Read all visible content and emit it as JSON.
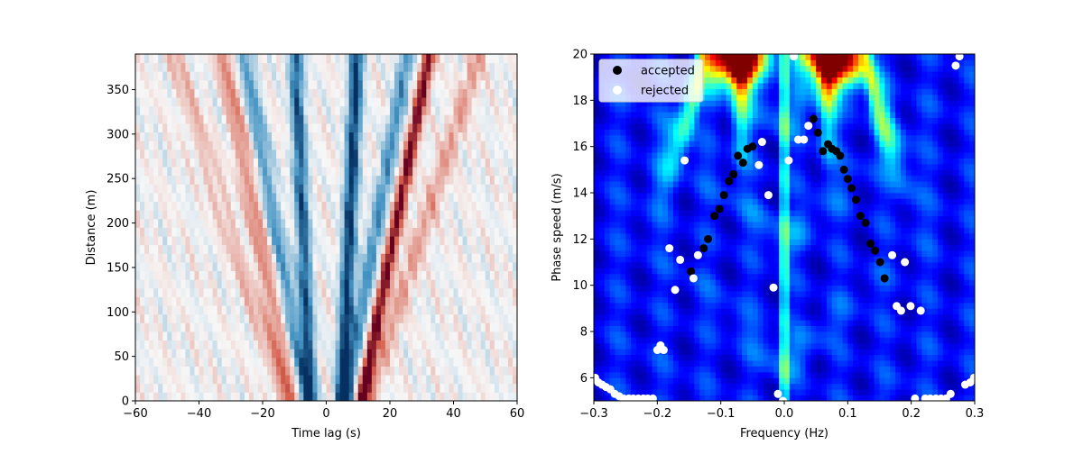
{
  "chart_data": [
    {
      "type": "heatmap",
      "title": "",
      "xlabel": "Time lag (s)",
      "ylabel": "Distance (m)",
      "xlim": [
        -60,
        60
      ],
      "ylim": [
        0,
        390
      ],
      "xticks": [
        -60,
        -40,
        -20,
        0,
        20,
        40,
        60
      ],
      "yticks": [
        0,
        50,
        100,
        150,
        200,
        250,
        300,
        350
      ],
      "colormap": "RdBu",
      "bands": [
        {
          "slope_s_per_m": 0.012,
          "offset_s": 5,
          "sign": "positive",
          "polarity": -1,
          "strength": 1.0,
          "width_s": 2.2
        },
        {
          "slope_s_per_m": 0.012,
          "offset_s": 5,
          "sign": "negative",
          "polarity": -1,
          "strength": 0.85,
          "width_s": 2.2
        },
        {
          "slope_s_per_m": 0.055,
          "offset_s": 11,
          "sign": "positive",
          "polarity": 1,
          "strength": 1.0,
          "width_s": 2.0
        },
        {
          "slope_s_per_m": 0.05,
          "offset_s": 6,
          "sign": "positive",
          "polarity": -1,
          "strength": 0.6,
          "width_s": 2.5
        },
        {
          "slope_s_per_m": 0.05,
          "offset_s": 6,
          "sign": "negative",
          "polarity": -1,
          "strength": 0.55,
          "width_s": 2.5
        },
        {
          "slope_s_per_m": 0.055,
          "offset_s": 11,
          "sign": "negative",
          "polarity": 1,
          "strength": 0.45,
          "width_s": 2.5
        },
        {
          "slope_s_per_m": 0.09,
          "offset_s": 13,
          "sign": "positive",
          "polarity": 1,
          "strength": 0.35,
          "width_s": 3.0
        },
        {
          "slope_s_per_m": 0.09,
          "offset_s": 13,
          "sign": "negative",
          "polarity": 1,
          "strength": 0.25,
          "width_s": 3.0
        }
      ]
    },
    {
      "type": "scatter",
      "title": "",
      "xlabel": "Frequency (Hz)",
      "ylabel": "Phase speed (m/s)",
      "xlim": [
        -0.3,
        0.3
      ],
      "ylim": [
        5,
        20
      ],
      "xticks": [
        -0.3,
        -0.2,
        -0.1,
        0.0,
        0.1,
        0.2,
        0.3
      ],
      "xtick_labels": [
        "−0.3",
        "−0.2",
        "−0.1",
        "0.0",
        "0.1",
        "0.2",
        "0.3"
      ],
      "yticks": [
        6,
        8,
        10,
        12,
        14,
        16,
        18,
        20
      ],
      "background": "dispersion image (jet colormap)",
      "legend": {
        "position": "top-left",
        "entries": [
          "accepted",
          "rejected"
        ]
      },
      "series": [
        {
          "name": "accepted",
          "color": "#000000",
          "points": [
            [
              -0.147,
              10.6
            ],
            [
              -0.127,
              11.6
            ],
            [
              -0.12,
              12.0
            ],
            [
              -0.11,
              13.0
            ],
            [
              -0.102,
              13.3
            ],
            [
              -0.095,
              13.9
            ],
            [
              -0.087,
              14.5
            ],
            [
              -0.08,
              14.8
            ],
            [
              -0.073,
              15.6
            ],
            [
              -0.065,
              15.3
            ],
            [
              -0.058,
              15.9
            ],
            [
              -0.05,
              16.0
            ],
            [
              0.046,
              17.2
            ],
            [
              0.053,
              16.6
            ],
            [
              0.061,
              15.8
            ],
            [
              0.069,
              16.1
            ],
            [
              0.075,
              15.9
            ],
            [
              0.082,
              15.8
            ],
            [
              0.088,
              15.6
            ],
            [
              0.094,
              15.0
            ],
            [
              0.1,
              14.6
            ],
            [
              0.106,
              14.2
            ],
            [
              0.113,
              13.7
            ],
            [
              0.12,
              13.0
            ],
            [
              0.128,
              12.7
            ],
            [
              0.136,
              11.8
            ],
            [
              0.143,
              11.5
            ],
            [
              0.151,
              11.0
            ],
            [
              0.158,
              10.3
            ]
          ]
        },
        {
          "name": "rejected",
          "color": "#ffffff",
          "points": [
            [
              -0.298,
              6.0
            ],
            [
              -0.293,
              5.8
            ],
            [
              -0.287,
              5.7
            ],
            [
              -0.281,
              5.6
            ],
            [
              -0.274,
              5.5
            ],
            [
              -0.267,
              5.3
            ],
            [
              -0.26,
              5.2
            ],
            [
              -0.253,
              5.1
            ],
            [
              -0.245,
              5.1
            ],
            [
              -0.238,
              5.1
            ],
            [
              -0.23,
              5.1
            ],
            [
              -0.222,
              5.1
            ],
            [
              -0.215,
              5.1
            ],
            [
              -0.207,
              5.1
            ],
            [
              -0.2,
              7.2
            ],
            [
              -0.195,
              7.4
            ],
            [
              -0.19,
              7.2
            ],
            [
              -0.181,
              11.6
            ],
            [
              -0.172,
              9.8
            ],
            [
              -0.164,
              11.1
            ],
            [
              -0.157,
              15.4
            ],
            [
              -0.143,
              10.3
            ],
            [
              -0.136,
              11.3
            ],
            [
              -0.04,
              15.2
            ],
            [
              -0.035,
              16.2
            ],
            [
              -0.025,
              13.9
            ],
            [
              -0.017,
              9.9
            ],
            [
              -0.01,
              5.3
            ],
            [
              -0.002,
              5.0
            ],
            [
              0.007,
              15.4
            ],
            [
              0.015,
              19.9
            ],
            [
              0.022,
              16.3
            ],
            [
              0.031,
              16.3
            ],
            [
              0.038,
              16.9
            ],
            [
              0.17,
              11.3
            ],
            [
              0.177,
              9.1
            ],
            [
              0.184,
              8.9
            ],
            [
              0.19,
              11.0
            ],
            [
              0.199,
              9.1
            ],
            [
              0.206,
              5.1
            ],
            [
              0.215,
              8.9
            ],
            [
              0.222,
              5.1
            ],
            [
              0.23,
              5.1
            ],
            [
              0.239,
              5.1
            ],
            [
              0.247,
              5.1
            ],
            [
              0.255,
              5.1
            ],
            [
              0.262,
              5.3
            ],
            [
              0.27,
              19.5
            ],
            [
              0.276,
              19.9
            ],
            [
              0.285,
              5.7
            ],
            [
              0.293,
              5.8
            ],
            [
              0.299,
              6.0
            ]
          ]
        }
      ]
    }
  ]
}
